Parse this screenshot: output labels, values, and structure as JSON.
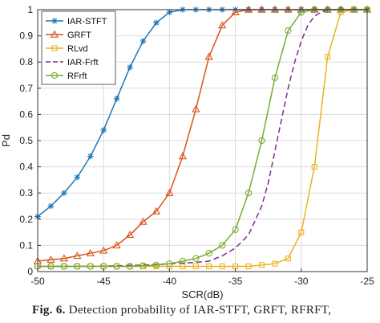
{
  "caption": {
    "label": "Fig. 6.",
    "text": "Detection probability of IAR-STFT, GRFT, RFRFT,"
  },
  "chart_data": {
    "type": "line",
    "title": "",
    "xlabel": "SCR(dB)",
    "ylabel": "Pd",
    "xlim": [
      -50,
      -25
    ],
    "ylim": [
      0,
      1
    ],
    "xticks": [
      -50,
      -45,
      -40,
      -35,
      -30,
      -25
    ],
    "yticks": [
      0,
      0.1,
      0.2,
      0.3,
      0.4,
      0.5,
      0.6,
      0.7,
      0.8,
      0.9,
      1
    ],
    "grid": true,
    "legend_position": "top-left",
    "series": [
      {
        "name": "IAR-STFT",
        "color": "#1f77b4",
        "marker": "star",
        "dash": "solid",
        "x": [
          -50,
          -49,
          -48,
          -47,
          -46,
          -45,
          -44,
          -43,
          -42,
          -41,
          -40,
          -39,
          -38,
          -37,
          -36,
          -35,
          -34,
          -33,
          -32,
          -31,
          -30,
          -29,
          -28,
          -27,
          -26,
          -25
        ],
        "y": [
          0.21,
          0.25,
          0.3,
          0.36,
          0.44,
          0.54,
          0.66,
          0.78,
          0.88,
          0.95,
          0.99,
          1,
          1,
          1,
          1,
          1,
          1,
          1,
          1,
          1,
          1,
          1,
          1,
          1,
          1,
          1
        ]
      },
      {
        "name": "GRFT",
        "color": "#d9541a",
        "marker": "triangle",
        "dash": "solid",
        "x": [
          -50,
          -49,
          -48,
          -47,
          -46,
          -45,
          -44,
          -43,
          -42,
          -41,
          -40,
          -39,
          -38,
          -37,
          -36,
          -35,
          -34,
          -33,
          -32,
          -31,
          -30,
          -29,
          -28,
          -27,
          -26,
          -25
        ],
        "y": [
          0.04,
          0.045,
          0.05,
          0.06,
          0.07,
          0.08,
          0.1,
          0.14,
          0.19,
          0.23,
          0.3,
          0.44,
          0.62,
          0.82,
          0.94,
          0.99,
          1,
          1,
          1,
          1,
          1,
          1,
          1,
          1,
          1,
          1
        ]
      },
      {
        "name": "RLvd",
        "color": "#edb120",
        "marker": "square",
        "dash": "solid",
        "x": [
          -50,
          -49,
          -48,
          -47,
          -46,
          -45,
          -44,
          -43,
          -42,
          -41,
          -40,
          -39,
          -38,
          -37,
          -36,
          -35,
          -34,
          -33,
          -32,
          -31,
          -30,
          -29,
          -28,
          -27,
          -26,
          -25
        ],
        "y": [
          0.02,
          0.02,
          0.02,
          0.02,
          0.02,
          0.02,
          0.02,
          0.02,
          0.02,
          0.02,
          0.02,
          0.02,
          0.02,
          0.02,
          0.02,
          0.02,
          0.02,
          0.025,
          0.03,
          0.05,
          0.15,
          0.4,
          0.82,
          0.99,
          1,
          1
        ]
      },
      {
        "name": "IAR-Frft",
        "color": "#7e2f8e",
        "marker": "none",
        "dash": "dashed",
        "x": [
          -50,
          -48,
          -46,
          -44,
          -42,
          -40,
          -38,
          -37,
          -36,
          -35,
          -34,
          -33,
          -32.5,
          -32,
          -31.5,
          -31,
          -30.5,
          -30,
          -29.5,
          -29,
          -28.5,
          -28,
          -27,
          -26,
          -25
        ],
        "y": [
          0.02,
          0.02,
          0.02,
          0.022,
          0.025,
          0.03,
          0.035,
          0.04,
          0.06,
          0.09,
          0.14,
          0.25,
          0.34,
          0.46,
          0.58,
          0.7,
          0.8,
          0.88,
          0.94,
          0.975,
          0.99,
          1,
          1,
          1,
          1
        ]
      },
      {
        "name": "RFrft",
        "color": "#77ac30",
        "marker": "circle",
        "dash": "solid",
        "x": [
          -50,
          -49,
          -48,
          -47,
          -46,
          -45,
          -44,
          -43,
          -42,
          -41,
          -40,
          -39,
          -38,
          -37,
          -36,
          -35,
          -34,
          -33,
          -32,
          -31,
          -30,
          -29,
          -28,
          -27,
          -26,
          -25
        ],
        "y": [
          0.02,
          0.02,
          0.02,
          0.02,
          0.02,
          0.02,
          0.02,
          0.02,
          0.022,
          0.025,
          0.03,
          0.04,
          0.05,
          0.07,
          0.1,
          0.16,
          0.3,
          0.5,
          0.74,
          0.92,
          0.99,
          1,
          1,
          1,
          1,
          1
        ]
      }
    ]
  }
}
